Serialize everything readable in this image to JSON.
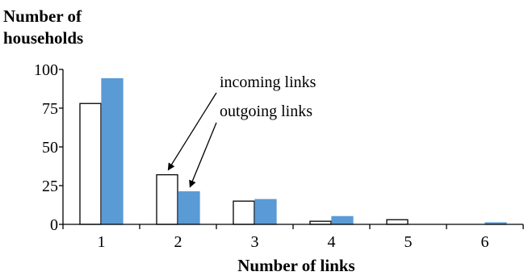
{
  "chart_data": {
    "type": "bar",
    "categories": [
      "1",
      "2",
      "3",
      "4",
      "5",
      "6"
    ],
    "series": [
      {
        "name": "incoming links",
        "values": [
          78,
          32,
          15,
          2,
          3,
          0
        ],
        "color": "#ffffff",
        "stroke": "#000000"
      },
      {
        "name": "outgoing links",
        "values": [
          94,
          21,
          16,
          5,
          0,
          1
        ],
        "color": "#5b9bd5",
        "stroke": "#5b9bd5"
      }
    ],
    "ylabel_lines": [
      "Number of",
      "households"
    ],
    "xlabel": "Number of links",
    "ylim": [
      0,
      100
    ],
    "yticks": [
      "0",
      "25",
      "50",
      "75",
      "100"
    ],
    "annotations": [
      {
        "text": "incoming links",
        "target_series": 0,
        "target_category": 1
      },
      {
        "text": "outgoing links",
        "target_series": 1,
        "target_category": 1
      }
    ]
  }
}
